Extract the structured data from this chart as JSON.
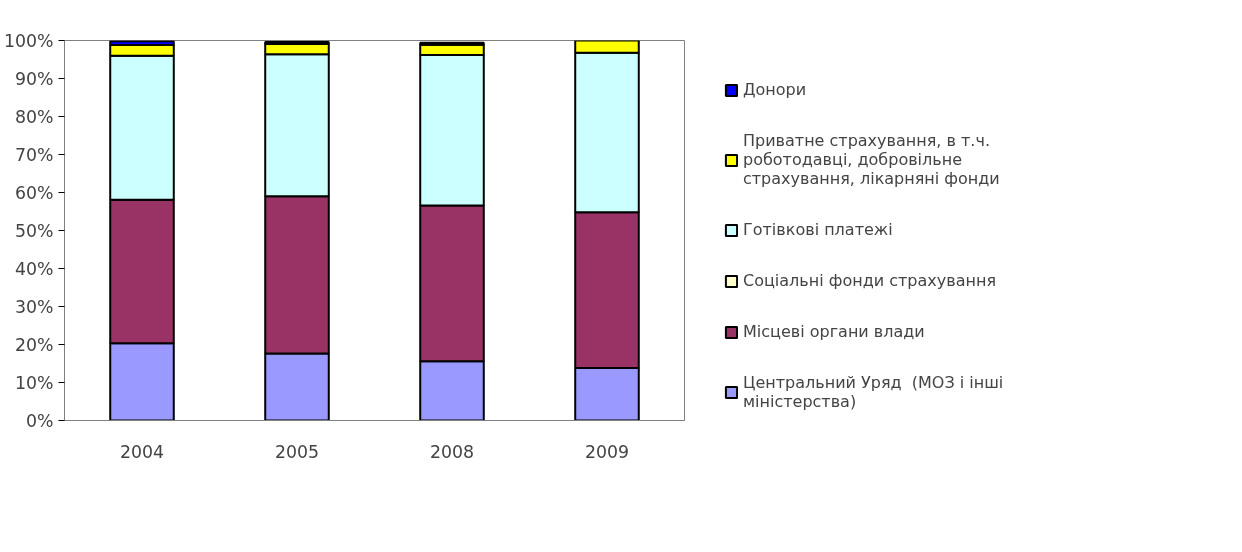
{
  "chart_data": {
    "type": "bar",
    "stacked": true,
    "categories": [
      "2004",
      "2005",
      "2008",
      "2009"
    ],
    "series": [
      {
        "name": "Центральний Уряд  (МОЗ і інші міністерства)",
        "color": "#9999ff",
        "values": [
          20.3,
          17.6,
          15.6,
          13.8
        ]
      },
      {
        "name": "Місцеві органи влади",
        "color": "#993366",
        "values": [
          37.8,
          41.4,
          41.0,
          41.0
        ]
      },
      {
        "name": "Соціальні фонди страхування",
        "color": "#ffffcc",
        "values": [
          null,
          null,
          null,
          null
        ]
      },
      {
        "name": "Готівкові платежі",
        "color": "#ccffff",
        "values": [
          37.9,
          37.4,
          39.6,
          42.0
        ]
      },
      {
        "name": "Приватне страхування, в т.ч. роботодавці, добровільне страхування, лікарняні фонди",
        "color": "#ffff00",
        "values": [
          2.8,
          2.7,
          2.7,
          3.2
        ]
      },
      {
        "name": "Донори",
        "color": "#0000ff",
        "values": [
          1.0,
          0.5,
          0.5,
          0
        ]
      }
    ],
    "ylim": [
      0,
      100
    ],
    "yticks": [
      {
        "value": 0,
        "label": "0%"
      },
      {
        "value": 10,
        "label": "10%"
      },
      {
        "value": 20,
        "label": "20%"
      },
      {
        "value": 30,
        "label": "30%"
      },
      {
        "value": 40,
        "label": "40%"
      },
      {
        "value": 50,
        "label": "50%"
      },
      {
        "value": 60,
        "label": "60%"
      },
      {
        "value": 70,
        "label": "70%"
      },
      {
        "value": 80,
        "label": "80%"
      },
      {
        "value": 90,
        "label": "90%"
      },
      {
        "value": 100,
        "label": "100%"
      }
    ],
    "grid": false,
    "legend": "right"
  }
}
